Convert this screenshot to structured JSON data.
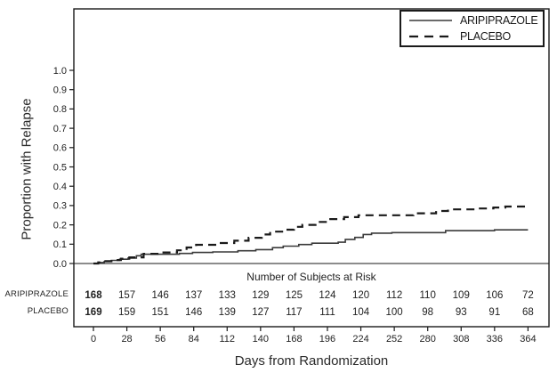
{
  "chart_data": {
    "type": "line",
    "subtype": "kaplan-meier-step",
    "title": "",
    "xlabel": "Days from Randomization",
    "ylabel": "Proportion with Relapse",
    "xlim": [
      0,
      364
    ],
    "ylim": [
      0,
      1.0
    ],
    "grid": false,
    "legend_position": "top-right-inside",
    "x_ticks": [
      0,
      28,
      56,
      84,
      112,
      140,
      168,
      196,
      224,
      252,
      280,
      308,
      336,
      364
    ],
    "y_ticks": [
      0.0,
      0.1,
      0.2,
      0.3,
      0.4,
      0.5,
      0.6,
      0.7,
      0.8,
      0.9,
      1.0
    ],
    "legend": [
      {
        "name": "ARIPIPRAZOLE",
        "style": "solid"
      },
      {
        "name": "PLACEBO",
        "style": "dashed"
      }
    ],
    "series": [
      {
        "name": "ARIPIPRAZOLE",
        "style": "solid",
        "points": [
          [
            0,
            0.0
          ],
          [
            4,
            0.005
          ],
          [
            9,
            0.01
          ],
          [
            15,
            0.016
          ],
          [
            22,
            0.022
          ],
          [
            29,
            0.028
          ],
          [
            36,
            0.04
          ],
          [
            40,
            0.048
          ],
          [
            72,
            0.052
          ],
          [
            83,
            0.057
          ],
          [
            100,
            0.06
          ],
          [
            121,
            0.066
          ],
          [
            136,
            0.072
          ],
          [
            150,
            0.082
          ],
          [
            159,
            0.09
          ],
          [
            172,
            0.098
          ],
          [
            183,
            0.105
          ],
          [
            205,
            0.11
          ],
          [
            211,
            0.125
          ],
          [
            219,
            0.135
          ],
          [
            226,
            0.15
          ],
          [
            233,
            0.157
          ],
          [
            250,
            0.16
          ],
          [
            295,
            0.17
          ],
          [
            336,
            0.174
          ],
          [
            364,
            0.174
          ]
        ]
      },
      {
        "name": "PLACEBO",
        "style": "dashed",
        "points": [
          [
            0,
            0.0
          ],
          [
            4,
            0.006
          ],
          [
            10,
            0.012
          ],
          [
            16,
            0.018
          ],
          [
            23,
            0.025
          ],
          [
            30,
            0.032
          ],
          [
            42,
            0.05
          ],
          [
            55,
            0.057
          ],
          [
            70,
            0.068
          ],
          [
            78,
            0.083
          ],
          [
            86,
            0.097
          ],
          [
            105,
            0.106
          ],
          [
            118,
            0.118
          ],
          [
            130,
            0.133
          ],
          [
            141,
            0.15
          ],
          [
            148,
            0.165
          ],
          [
            160,
            0.175
          ],
          [
            168,
            0.19
          ],
          [
            175,
            0.2
          ],
          [
            186,
            0.215
          ],
          [
            196,
            0.23
          ],
          [
            210,
            0.24
          ],
          [
            222,
            0.25
          ],
          [
            268,
            0.26
          ],
          [
            287,
            0.272
          ],
          [
            297,
            0.28
          ],
          [
            320,
            0.285
          ],
          [
            335,
            0.29
          ],
          [
            345,
            0.295
          ],
          [
            364,
            0.295
          ]
        ]
      }
    ]
  },
  "risk_table": {
    "title": "Number of Subjects at Risk",
    "days": [
      0,
      28,
      56,
      84,
      112,
      140,
      168,
      196,
      224,
      252,
      280,
      308,
      336,
      364
    ],
    "rows": [
      {
        "label": "ARIPIPRAZOLE",
        "values": [
          168,
          157,
          146,
          137,
          133,
          129,
          125,
          124,
          120,
          112,
          110,
          109,
          106,
          72
        ]
      },
      {
        "label": "PLACEBO",
        "values": [
          169,
          159,
          151,
          146,
          139,
          127,
          117,
          111,
          104,
          100,
          98,
          93,
          91,
          68
        ]
      }
    ]
  },
  "colors": {
    "frame": "#1a1a1a",
    "solid_line": "#3a3a3a",
    "dashed_line": "#1a1a1a",
    "text": "#222222"
  }
}
